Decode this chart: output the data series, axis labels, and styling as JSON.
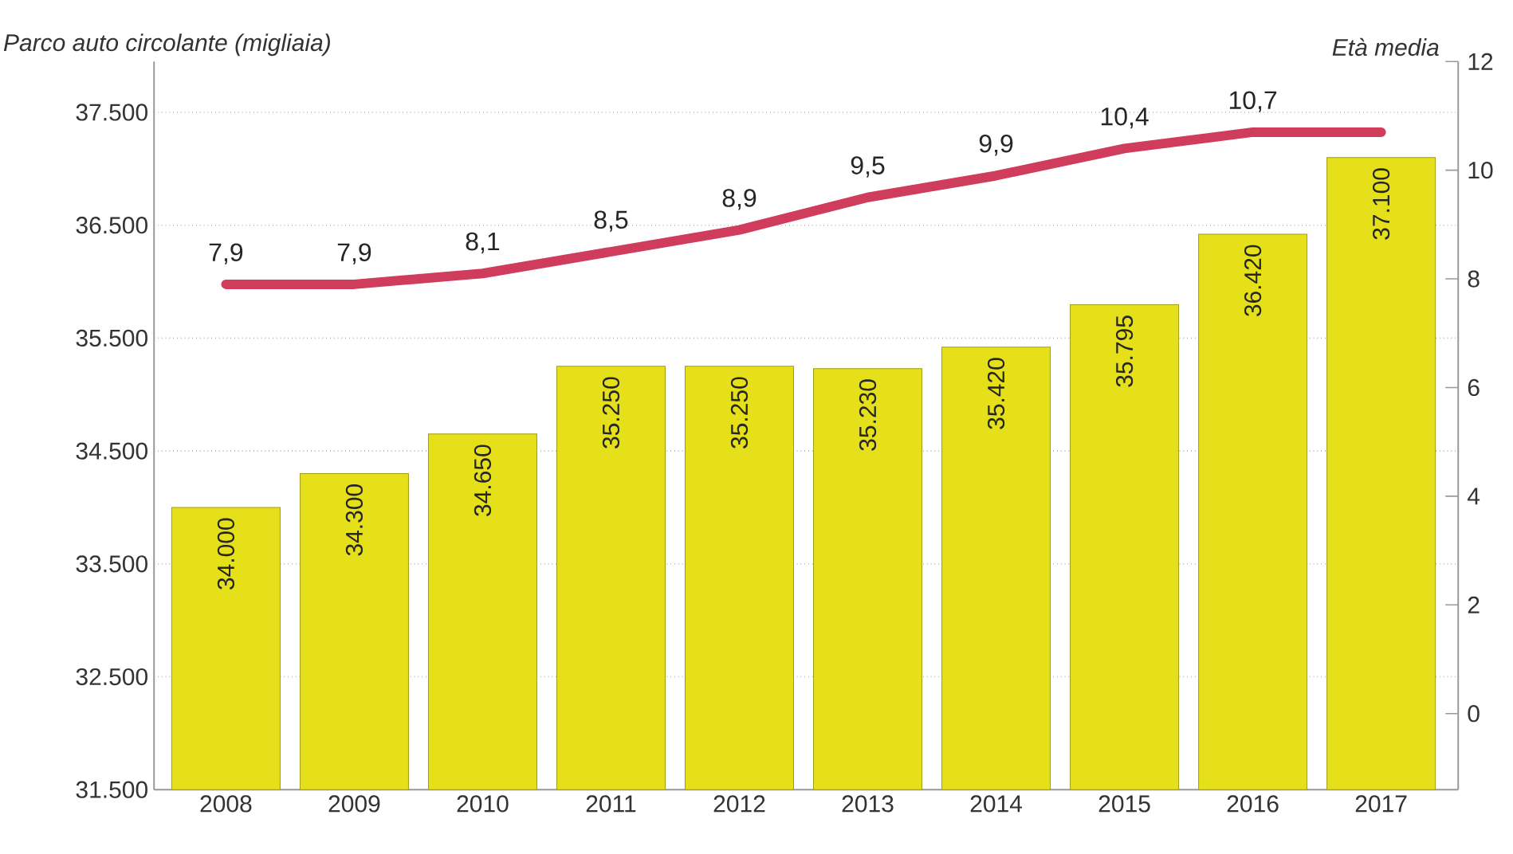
{
  "chart_data": {
    "type": "bar",
    "ylabel": "Parco auto circolante (migliaia)",
    "y2label": "Età media",
    "categories": [
      "2008",
      "2009",
      "2010",
      "2011",
      "2012",
      "2013",
      "2014",
      "2015",
      "2016",
      "2017"
    ],
    "series": [
      {
        "color": "#e6e01a",
        "values": [
          34000,
          34300,
          34650,
          35250,
          35250,
          35230,
          35420,
          35795,
          36420,
          37100
        ],
        "value_labels": [
          "34.000",
          "34.300",
          "34.650",
          "35.250",
          "35.250",
          "35.230",
          "35.420",
          "35.795",
          "36.420",
          "37.100"
        ]
      },
      {
        "type": "line",
        "axis": "y2",
        "color": "#d03c5c",
        "values": [
          7.9,
          7.9,
          8.1,
          8.5,
          8.9,
          9.5,
          9.9,
          10.4,
          10.7,
          10.7
        ],
        "value_labels": [
          "7,9",
          "7,9",
          "8,1",
          "8,5",
          "8,9",
          "9,5",
          "9,9",
          "10,4",
          "10,7",
          null
        ]
      }
    ],
    "ylim": [
      31500,
      37950
    ],
    "yticks": [
      {
        "value": 31500,
        "label": "31.500"
      },
      {
        "value": 32500,
        "label": "32.500"
      },
      {
        "value": 33500,
        "label": "33.500"
      },
      {
        "value": 34500,
        "label": "34.500"
      },
      {
        "value": 35500,
        "label": "35.500"
      },
      {
        "value": 36500,
        "label": "36.500"
      },
      {
        "value": 37500,
        "label": "37.500"
      }
    ],
    "y2lim": [
      -1.4,
      12
    ],
    "y2ticks": [
      0,
      2,
      4,
      6,
      8,
      10,
      12
    ],
    "grid": "y"
  }
}
